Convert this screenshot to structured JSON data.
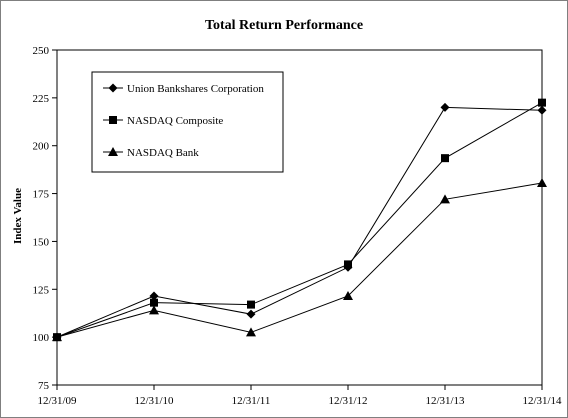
{
  "chart_data": {
    "type": "line",
    "title": "Total Return Performance",
    "xlabel": "",
    "ylabel": "Index Value",
    "categories": [
      "12/31/09",
      "12/31/10",
      "12/31/11",
      "12/31/12",
      "12/31/13",
      "12/31/14"
    ],
    "ylim": [
      75,
      250
    ],
    "yticks": [
      75,
      100,
      125,
      150,
      175,
      200,
      225,
      250
    ],
    "grid": false,
    "legend_placement": "top-left",
    "series": [
      {
        "name": "Union Bankshares Corporation",
        "marker": "diamond",
        "color": "#000000",
        "values": [
          100,
          121.5,
          112,
          136.5,
          220,
          218.5
        ]
      },
      {
        "name": "NASDAQ Composite",
        "marker": "square",
        "color": "#000000",
        "values": [
          100,
          118,
          117,
          138,
          193.5,
          222.5
        ]
      },
      {
        "name": "NASDAQ Bank",
        "marker": "triangle",
        "color": "#000000",
        "values": [
          100,
          114,
          102.5,
          121.5,
          172,
          180.5
        ]
      }
    ]
  }
}
